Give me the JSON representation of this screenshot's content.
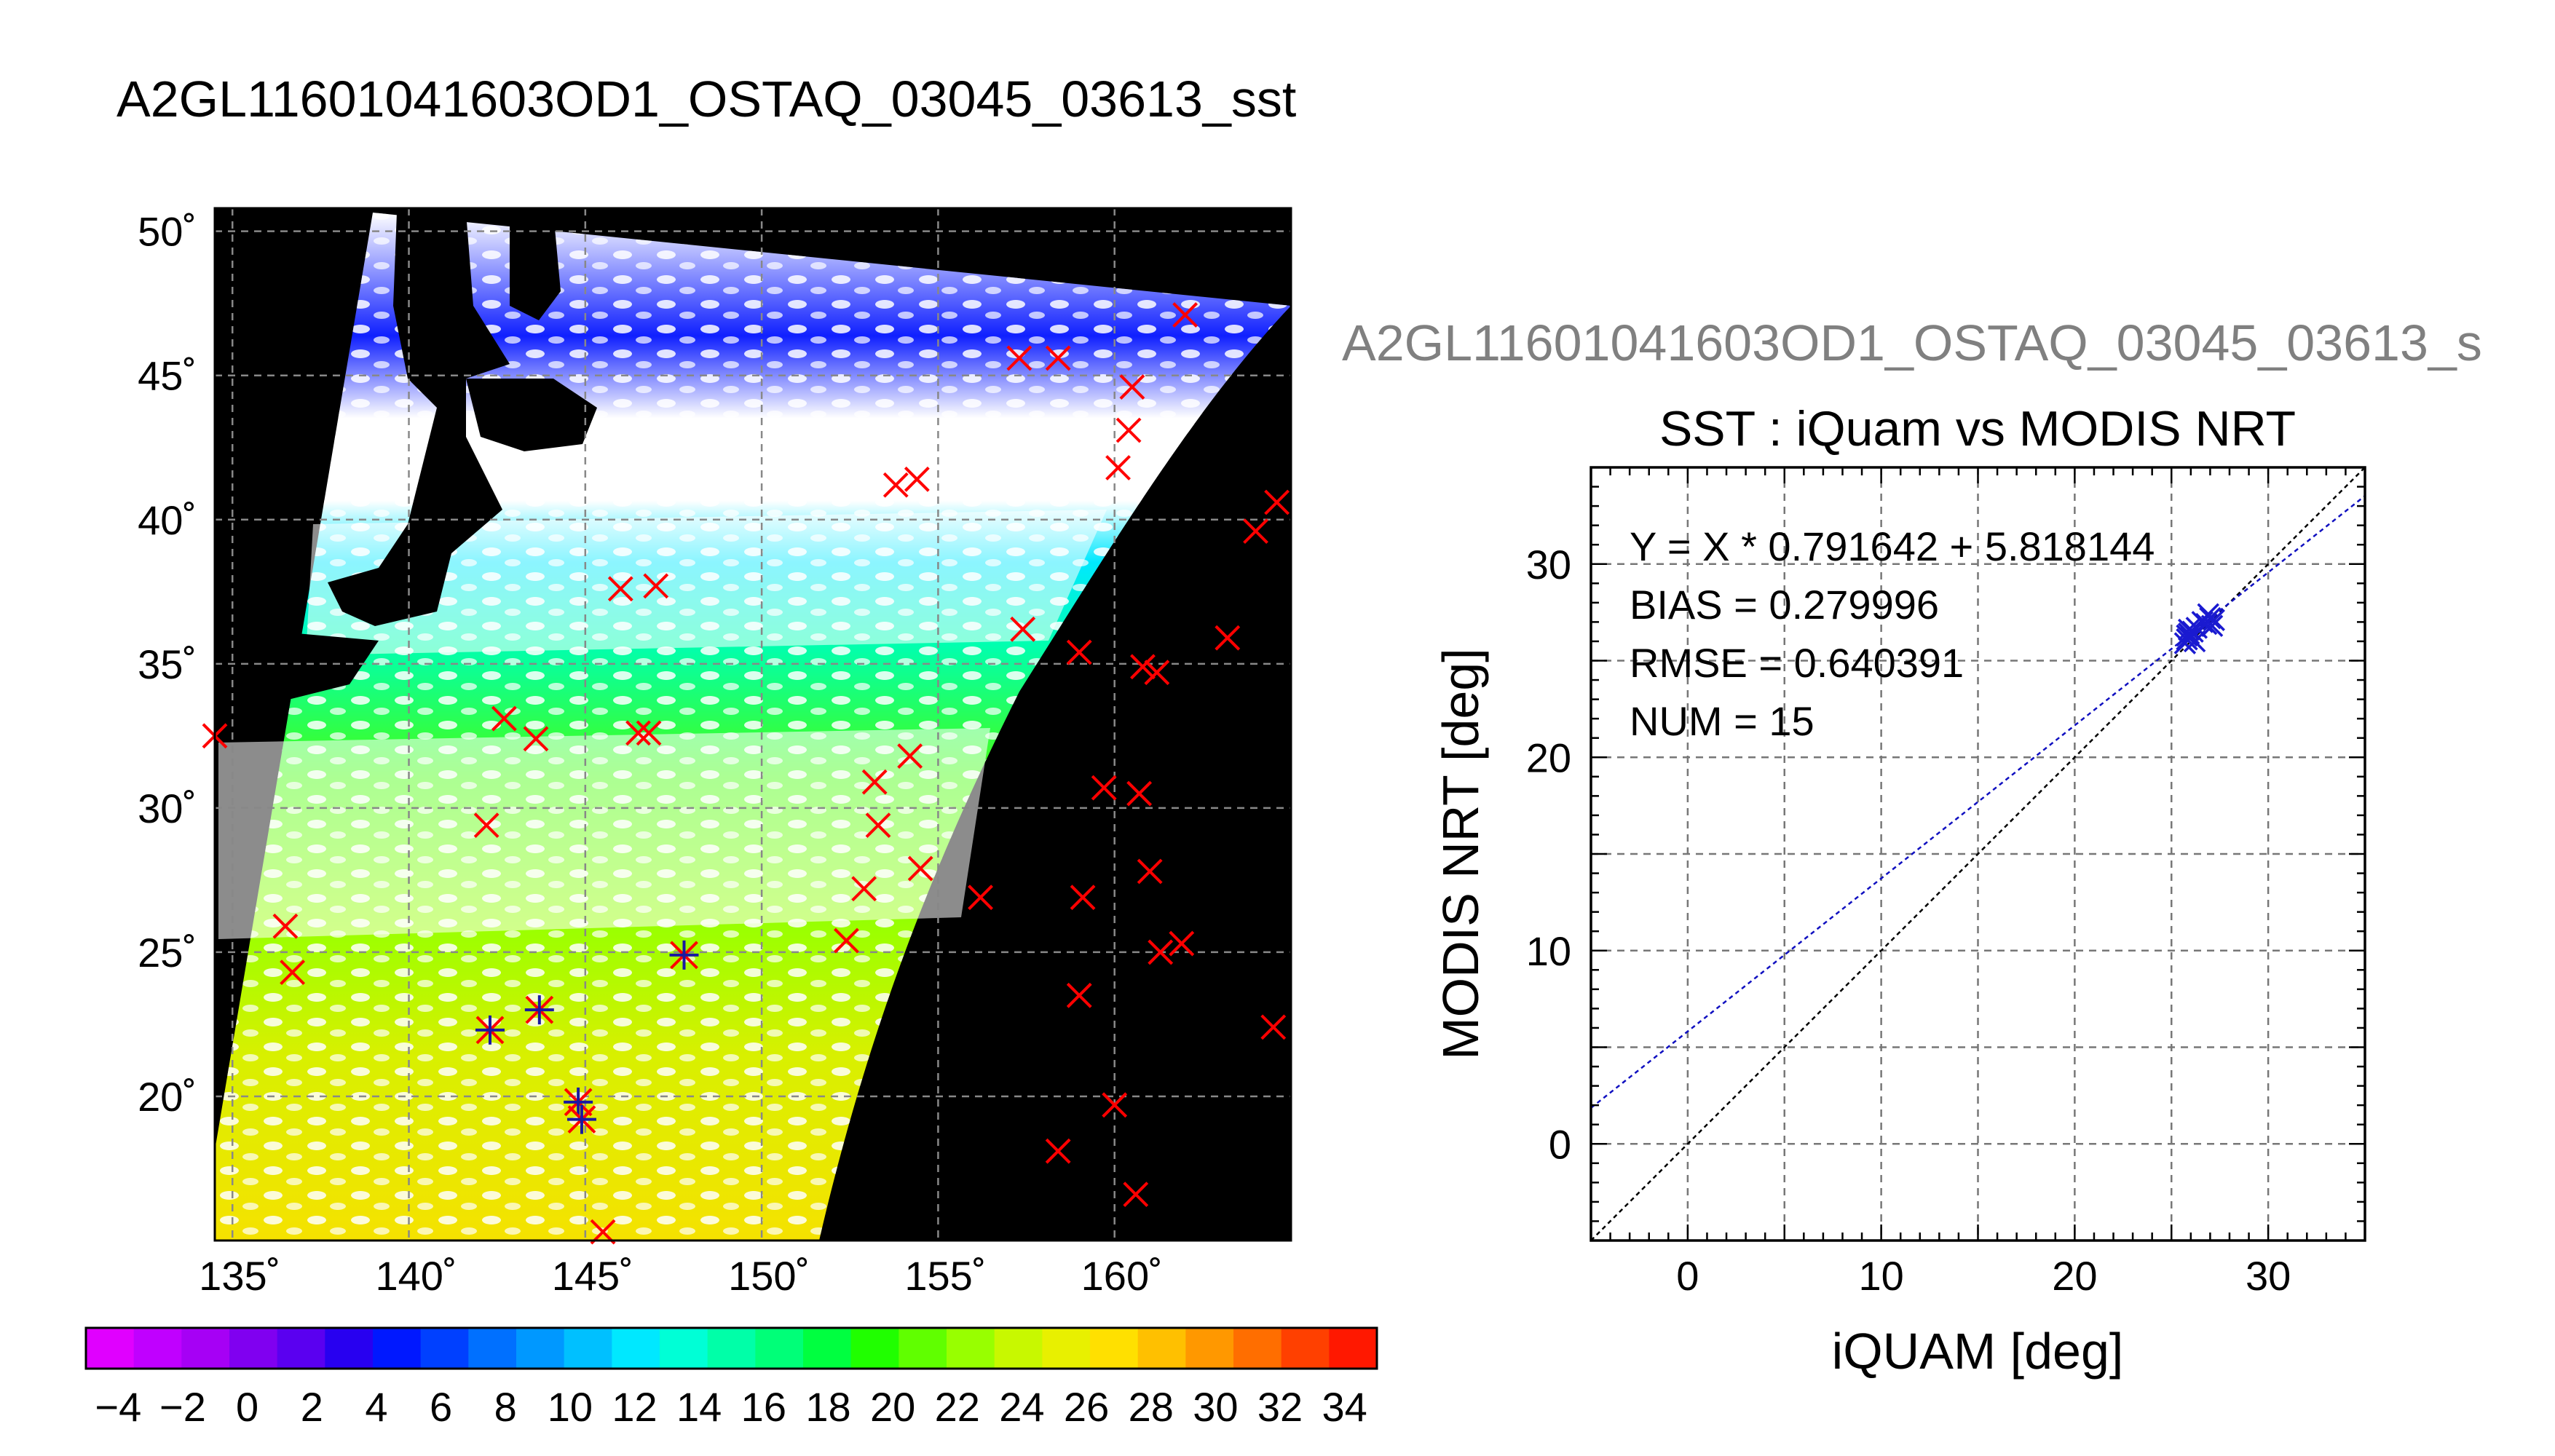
{
  "title": "A2GL11601041603OD1_OSTAQ_03045_03613_sst",
  "map": {
    "lat_labels": [
      "50˚",
      "45˚",
      "40˚",
      "35˚",
      "30˚",
      "25˚",
      "20˚"
    ],
    "lat_values": [
      50,
      45,
      40,
      35,
      30,
      25,
      20
    ],
    "lon_labels": [
      "135˚",
      "140˚",
      "145˚",
      "150˚",
      "155˚",
      "160˚"
    ],
    "lon_values": [
      135,
      140,
      145,
      150,
      155,
      160
    ],
    "lon_range": [
      134.5,
      165
    ],
    "lat_range": [
      15,
      50.8
    ]
  },
  "colorbar": {
    "tick_labels": [
      "−4",
      "−2",
      "0",
      "2",
      "4",
      "6",
      "8",
      "10",
      "12",
      "14",
      "16",
      "18",
      "20",
      "22",
      "24",
      "26",
      "28",
      "30",
      "32",
      "34"
    ],
    "range": [
      -5,
      35
    ],
    "colors": [
      "#e000ff",
      "#c000ff",
      "#a600f5",
      "#8000f0",
      "#5a00f0",
      "#2800f0",
      "#0018ff",
      "#0040ff",
      "#0070ff",
      "#0098ff",
      "#00c0ff",
      "#00e8ff",
      "#00ffd6",
      "#00ffa8",
      "#00ff78",
      "#00ff40",
      "#20ff00",
      "#60ff00",
      "#98ff00",
      "#c8f800",
      "#e8f000",
      "#ffe000",
      "#ffc000",
      "#ff9800",
      "#ff6e00",
      "#ff4000",
      "#ff1800"
    ]
  },
  "chart_data": {
    "type": "scatter",
    "subtitle_clipped": "A2GL11601041603OD1_OSTAQ_03045_03613_s",
    "title": "SST : iQuam vs MODIS NRT",
    "xlabel": "iQUAM [deg]",
    "ylabel": "MODIS NRT [deg]",
    "xlim": [
      -5,
      35
    ],
    "ylim": [
      -5,
      35
    ],
    "xticks": [
      0,
      10,
      20,
      30
    ],
    "yticks": [
      0,
      10,
      20,
      30
    ],
    "grid": true,
    "stats": {
      "fit": "Y = X * 0.791642 + 5.818144",
      "bias": "BIAS = 0.279996",
      "rmse": "RMSE = 0.640391",
      "num": "NUM = 15"
    },
    "fit_line": {
      "slope": 0.791642,
      "intercept": 5.818144
    },
    "identity_line": true,
    "points": [
      {
        "x": 25.8,
        "y": 26.1
      },
      {
        "x": 25.9,
        "y": 26.4
      },
      {
        "x": 26.0,
        "y": 26.2
      },
      {
        "x": 26.1,
        "y": 26.5
      },
      {
        "x": 25.7,
        "y": 25.9
      },
      {
        "x": 26.3,
        "y": 26.7
      },
      {
        "x": 26.8,
        "y": 26.9
      },
      {
        "x": 27.0,
        "y": 27.2
      },
      {
        "x": 27.1,
        "y": 26.8
      },
      {
        "x": 26.9,
        "y": 27.4
      },
      {
        "x": 26.2,
        "y": 26.0
      },
      {
        "x": 25.9,
        "y": 26.6
      },
      {
        "x": 27.2,
        "y": 27.1
      },
      {
        "x": 26.6,
        "y": 27.0
      },
      {
        "x": 25.8,
        "y": 26.3
      }
    ]
  },
  "map_markers": {
    "red_x": [
      [
        162,
        47.1
      ],
      [
        157.3,
        45.6
      ],
      [
        158.4,
        45.6
      ],
      [
        160.5,
        44.6
      ],
      [
        160.4,
        43.1
      ],
      [
        160.1,
        41.8
      ],
      [
        153.8,
        41.2
      ],
      [
        154.4,
        41.4
      ],
      [
        146,
        37.6
      ],
      [
        147,
        37.7
      ],
      [
        157.4,
        36.2
      ],
      [
        164.6,
        40.6
      ],
      [
        164,
        39.6
      ],
      [
        163.2,
        35.9
      ],
      [
        159,
        35.4
      ],
      [
        160.8,
        34.9
      ],
      [
        161.2,
        34.7
      ],
      [
        142.7,
        33.1
      ],
      [
        143.6,
        32.4
      ],
      [
        146.5,
        32.6
      ],
      [
        146.8,
        32.6
      ],
      [
        134.5,
        32.5
      ],
      [
        154.2,
        31.8
      ],
      [
        153.2,
        30.9
      ],
      [
        159.7,
        30.7
      ],
      [
        160.7,
        30.5
      ],
      [
        142.2,
        29.4
      ],
      [
        153.3,
        29.4
      ],
      [
        154.5,
        27.9
      ],
      [
        152.9,
        27.2
      ],
      [
        156.2,
        26.9
      ],
      [
        161,
        27.8
      ],
      [
        159.1,
        26.9
      ],
      [
        136.5,
        25.9
      ],
      [
        136.7,
        24.3
      ],
      [
        152.4,
        25.4
      ],
      [
        161.9,
        25.3
      ],
      [
        161.3,
        25
      ],
      [
        159,
        23.5
      ],
      [
        164.5,
        22.4
      ],
      [
        160,
        19.7
      ],
      [
        158.4,
        18.1
      ],
      [
        160.6,
        16.6
      ],
      [
        145.5,
        15.3
      ]
    ],
    "blue_star": [
      [
        147.8,
        24.9
      ],
      [
        143.7,
        23
      ],
      [
        142.3,
        22.3
      ],
      [
        144.8,
        19.8
      ],
      [
        144.9,
        19.2
      ]
    ]
  }
}
